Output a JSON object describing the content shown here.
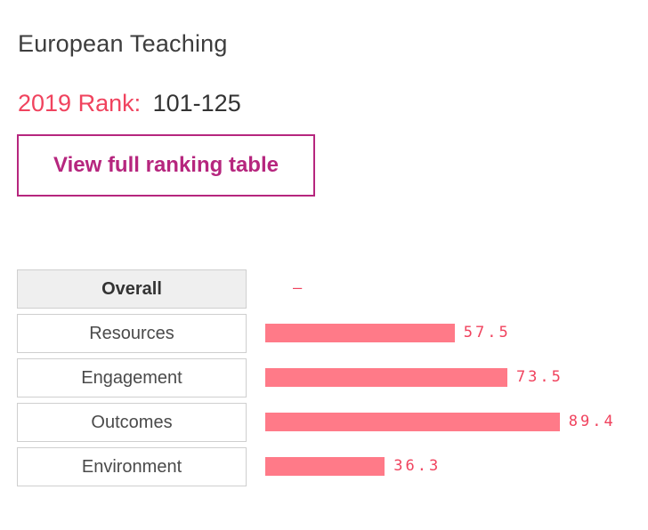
{
  "header": {
    "title": "European Teaching",
    "rank_label": "2019 Rank:",
    "rank_value": "101-125"
  },
  "cta": {
    "label": "View full ranking table"
  },
  "metrics": [
    {
      "label": "Overall",
      "value_text": "–",
      "score": null,
      "active": true
    },
    {
      "label": "Resources",
      "value_text": "57.5",
      "score": 57.5,
      "active": false
    },
    {
      "label": "Engagement",
      "value_text": "73.5",
      "score": 73.5,
      "active": false
    },
    {
      "label": "Outcomes",
      "value_text": "89.4",
      "score": 89.4,
      "active": false
    },
    {
      "label": "Environment",
      "value_text": "36.3",
      "score": 36.3,
      "active": false
    }
  ],
  "colors": {
    "accent": "#f0435e",
    "bar": "#ff7a88",
    "button": "#b6267e"
  }
}
